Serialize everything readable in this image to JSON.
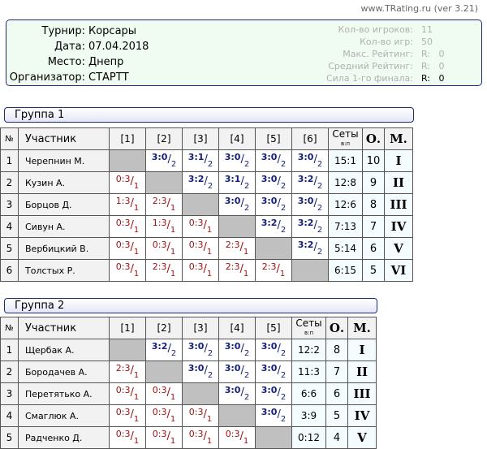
{
  "site": "www.TRating.ru (ver 3.21)",
  "info": {
    "left": [
      {
        "k": "Турнир:",
        "v": "Корсары"
      },
      {
        "k": "Дата:",
        "v": "07.04.2018"
      },
      {
        "k": "Место:",
        "v": "Днепр"
      },
      {
        "k": "Организатор:",
        "v": "СТАРТТ"
      }
    ],
    "right": [
      {
        "k": "Кол-во игроков:",
        "v": "11"
      },
      {
        "k": "Кол-во игр:",
        "v": "50"
      },
      {
        "k": "Макс. Рейтинг:",
        "v": "R:   0"
      },
      {
        "k": "Средний Рейтинг:",
        "v": "R:   0"
      },
      {
        "k": "Сила 1-го финала:",
        "v": "R:   0"
      }
    ]
  },
  "headers": {
    "num": "№",
    "name": "Участник",
    "sets": "Сеты",
    "sets_sub": "в:п",
    "points": "О.",
    "place": "М."
  },
  "colors": {
    "win": "#14207a",
    "loss": "#a01010",
    "self": "#c0c0c0"
  },
  "groups": [
    {
      "title": "Группа 1",
      "rows": [
        {
          "n": "1",
          "name": "Черепнин М.",
          "res": [
            "",
            "3:0/2",
            "3:1/2",
            "3:0/2",
            "3:0/2",
            "3:0/2"
          ],
          "sets": "15:1",
          "pts": "10",
          "place": "I"
        },
        {
          "n": "2",
          "name": "Кузин А.",
          "res": [
            "0:3/1",
            "",
            "3:2/2",
            "3:1/2",
            "3:0/2",
            "3:2/2"
          ],
          "sets": "12:8",
          "pts": "9",
          "place": "II"
        },
        {
          "n": "3",
          "name": "Борцов Д.",
          "res": [
            "1:3/1",
            "2:3/1",
            "",
            "3:0/2",
            "3:0/2",
            "3:0/2"
          ],
          "sets": "12:6",
          "pts": "8",
          "place": "III"
        },
        {
          "n": "4",
          "name": "Сивун А.",
          "res": [
            "0:3/1",
            "1:3/1",
            "0:3/1",
            "",
            "3:2/2",
            "3:2/2"
          ],
          "sets": "7:13",
          "pts": "7",
          "place": "IV"
        },
        {
          "n": "5",
          "name": "Вербицкий В.",
          "res": [
            "0:3/1",
            "0:3/1",
            "0:3/1",
            "2:3/1",
            "",
            "3:2/2"
          ],
          "sets": "5:14",
          "pts": "6",
          "place": "V"
        },
        {
          "n": "6",
          "name": "Толстых Р.",
          "res": [
            "0:3/1",
            "2:3/1",
            "0:3/1",
            "2:3/1",
            "2:3/1",
            ""
          ],
          "sets": "6:15",
          "pts": "5",
          "place": "VI"
        }
      ]
    },
    {
      "title": "Группа 2",
      "rows": [
        {
          "n": "1",
          "name": "Щербак А.",
          "res": [
            "",
            "3:2/2",
            "3:0/2",
            "3:0/2",
            "3:0/2"
          ],
          "sets": "12:2",
          "pts": "8",
          "place": "I"
        },
        {
          "n": "2",
          "name": "Бородачев А.",
          "res": [
            "2:3/1",
            "",
            "3:0/2",
            "3:0/2",
            "3:0/2"
          ],
          "sets": "11:3",
          "pts": "7",
          "place": "II"
        },
        {
          "n": "3",
          "name": "Перетятько А.",
          "res": [
            "0:3/1",
            "0:3/1",
            "",
            "3:0/2",
            "3:0/2"
          ],
          "sets": "6:6",
          "pts": "6",
          "place": "III"
        },
        {
          "n": "4",
          "name": "Смаглюк А.",
          "res": [
            "0:3/1",
            "0:3/1",
            "0:3/1",
            "",
            "3:0/2"
          ],
          "sets": "3:9",
          "pts": "5",
          "place": "IV"
        },
        {
          "n": "5",
          "name": "Радченко Д.",
          "res": [
            "0:3/1",
            "0:3/1",
            "0:3/1",
            "0:3/1",
            ""
          ],
          "sets": "0:12",
          "pts": "4",
          "place": "V"
        }
      ]
    }
  ]
}
